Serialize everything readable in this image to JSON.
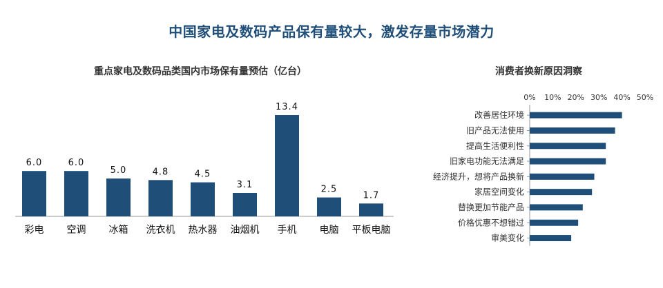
{
  "page": {
    "title": "中国家电及数码产品保有量较大，激发存量市场潜力"
  },
  "colors": {
    "bar": "#1f4e79",
    "title": "#1f4e79",
    "axis": "#999999"
  },
  "chart_data": [
    {
      "type": "bar",
      "title": "重点家电及数码品类国内市场保有量预估（亿台）",
      "categories": [
        "彩电",
        "空调",
        "冰箱",
        "洗衣机",
        "热水器",
        "油烟机",
        "手机",
        "电脑",
        "平板电脑"
      ],
      "values": [
        6.0,
        6.0,
        5.0,
        4.8,
        4.5,
        3.1,
        13.4,
        2.5,
        1.7
      ],
      "value_labels": [
        "6.0",
        "6.0",
        "5.0",
        "4.8",
        "4.5",
        "3.1",
        "13.4",
        "2.5",
        "1.7"
      ],
      "xlabel": "",
      "ylabel": "",
      "ylim": [
        0,
        13.4
      ],
      "grid": false
    },
    {
      "type": "bar",
      "orientation": "horizontal",
      "title": "消费者换新原因洞察",
      "categories": [
        "改善居住环境",
        "旧产品无法使用",
        "提高生活便利性",
        "旧家电功能无法满足",
        "经济提升，想将产品换新",
        "家居空间变化",
        "替换更加节能产品",
        "价格优惠不想错过",
        "审美变化"
      ],
      "values": [
        40,
        37,
        33,
        33,
        28,
        27,
        23,
        21,
        18
      ],
      "xlim": [
        0,
        50
      ],
      "xticks": [
        0,
        10,
        20,
        30,
        40,
        50
      ],
      "xtick_labels": [
        "0%",
        "10%",
        "20%",
        "30%",
        "40%",
        "50%"
      ],
      "axis_position": "top",
      "grid": false
    }
  ]
}
